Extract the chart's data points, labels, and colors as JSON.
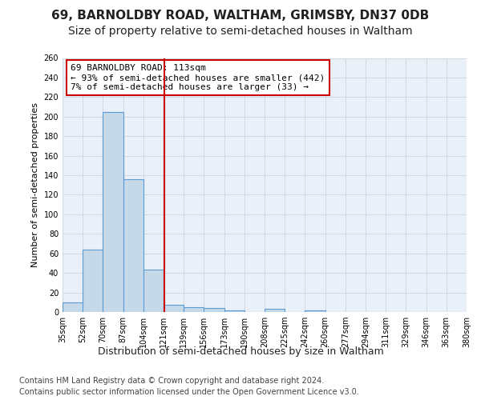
{
  "title": "69, BARNOLDBY ROAD, WALTHAM, GRIMSBY, DN37 0DB",
  "subtitle": "Size of property relative to semi-detached houses in Waltham",
  "xlabel": "Distribution of semi-detached houses by size in Waltham",
  "ylabel": "Number of semi-detached properties",
  "bin_labels": [
    "35sqm",
    "52sqm",
    "70sqm",
    "87sqm",
    "104sqm",
    "121sqm",
    "139sqm",
    "156sqm",
    "173sqm",
    "190sqm",
    "208sqm",
    "225sqm",
    "242sqm",
    "260sqm",
    "277sqm",
    "294sqm",
    "311sqm",
    "329sqm",
    "346sqm",
    "363sqm",
    "380sqm"
  ],
  "bar_heights": [
    10,
    64,
    205,
    136,
    43,
    7,
    5,
    4,
    2,
    0,
    3,
    0,
    2,
    0,
    0,
    0,
    0,
    0,
    0,
    0
  ],
  "bar_color": "#c6d9e8",
  "bar_edge_color": "#5b9bd5",
  "grid_color": "#d0d8e4",
  "background_color": "#eaf0f8",
  "red_line_bin": 4.53,
  "annotation_line1": "69 BARNOLDBY ROAD: 113sqm",
  "annotation_line2": "← 93% of semi-detached houses are smaller (442)",
  "annotation_line3": "7% of semi-detached houses are larger (33) →",
  "annotation_box_color": "#ffffff",
  "annotation_box_edge": "#cc0000",
  "ylim": [
    0,
    260
  ],
  "footer_line1": "Contains HM Land Registry data © Crown copyright and database right 2024.",
  "footer_line2": "Contains public sector information licensed under the Open Government Licence v3.0.",
  "title_fontsize": 11,
  "subtitle_fontsize": 10,
  "xlabel_fontsize": 9,
  "ylabel_fontsize": 8,
  "tick_fontsize": 7,
  "annotation_fontsize": 8,
  "footer_fontsize": 7
}
